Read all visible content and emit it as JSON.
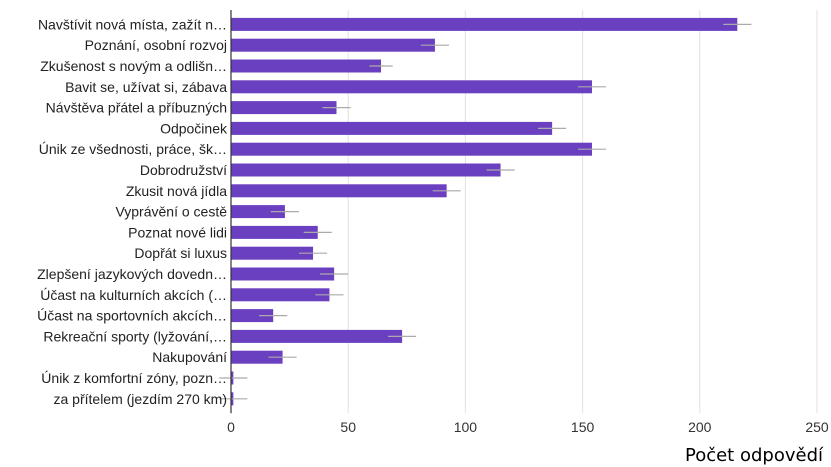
{
  "chart_data": {
    "type": "bar",
    "orientation": "horizontal",
    "xlabel": "Počet odpovědí",
    "xlim": [
      0,
      250
    ],
    "xticks": [
      0,
      50,
      100,
      150,
      200,
      250
    ],
    "grid": true,
    "bar_color": "#6a3fc0",
    "categories": [
      "Navštívit nová místa, zažít n…",
      "Poznání, osobní rozvoj",
      "Zkušenost s novým a odlišn…",
      "Bavit se, užívat si, zábava",
      "Návštěva přátel a příbuzných",
      "Odpočinek",
      "Únik ze všednosti, práce, šk…",
      "Dobrodružství",
      "Zkusit nová jídla",
      "Vyprávění o cestě",
      "Poznat nové lidi",
      "Dopřát si luxus",
      "Zlepšení jazykových dovedn…",
      "Účast na kulturních akcích (…",
      "Účast na sportovních akcích…",
      "Rekreační sporty (lyžování,…",
      "Nakupování",
      "Únik z komfortní zóny, pozn…",
      "za přítelem (jezdím 270 km)"
    ],
    "values": [
      216,
      87,
      64,
      154,
      45,
      137,
      154,
      115,
      92,
      23,
      37,
      35,
      44,
      42,
      18,
      73,
      22,
      1,
      1
    ],
    "error": [
      6,
      6,
      5,
      6,
      6,
      6,
      6,
      6,
      6,
      6,
      6,
      6,
      6,
      6,
      6,
      6,
      6,
      6,
      6
    ]
  }
}
